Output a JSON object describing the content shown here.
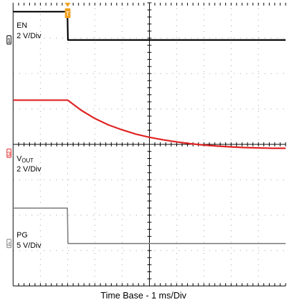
{
  "chart_data": {
    "type": "line",
    "title": "",
    "xlabel": "Time Base - 1 ms/Div",
    "time_per_div_ms": 1,
    "x_divisions": 10,
    "y_divisions": 8,
    "xlim_ms": [
      0,
      10
    ],
    "grid": true,
    "trigger_marker": {
      "x_ms": 2.0,
      "label": "T"
    },
    "channels": [
      {
        "name": "EN",
        "name_main": "EN",
        "name_sub": "",
        "scale": "2 V/Div",
        "color": "#000000",
        "marker": "1",
        "ground_div": 6.95,
        "x_ms": [
          0,
          1.99,
          2.01,
          10
        ],
        "y_div": [
          7.75,
          7.75,
          6.95,
          6.95
        ]
      },
      {
        "name": "VOUT",
        "name_main": "V",
        "name_sub": "OUT",
        "scale": "2 V/Div",
        "color": "#e02020",
        "marker": "3",
        "ground_div": 3.75,
        "x_ms": [
          0,
          2.0,
          2.5,
          3.0,
          3.5,
          4.0,
          4.5,
          5.0,
          5.5,
          6.0,
          6.5,
          7.0,
          7.5,
          8.0,
          8.5,
          9.0,
          9.5,
          10.0
        ],
        "y_div": [
          5.25,
          5.25,
          4.96,
          4.73,
          4.55,
          4.41,
          4.29,
          4.2,
          4.13,
          4.07,
          4.02,
          3.98,
          3.95,
          3.93,
          3.91,
          3.9,
          3.89,
          3.89
        ]
      },
      {
        "name": "PG",
        "name_main": "PG",
        "name_sub": "",
        "scale": "5 V/Div",
        "color": "#808080",
        "marker": "4",
        "ground_div": 1.2,
        "x_ms": [
          0,
          1.99,
          2.01,
          10
        ],
        "y_div": [
          2.2,
          2.2,
          1.2,
          1.2
        ]
      }
    ]
  }
}
